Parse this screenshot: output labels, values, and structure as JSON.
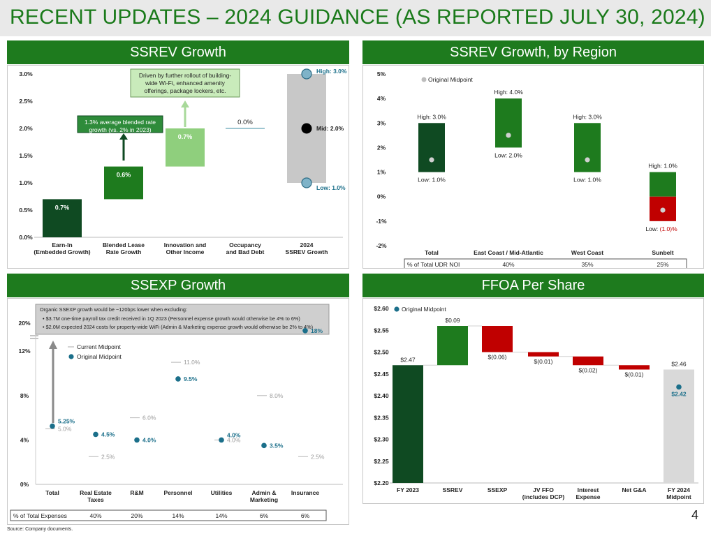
{
  "page": {
    "title": "RECENT UPDATES – 2024 GUIDANCE (AS REPORTED JULY 30, 2024)",
    "page_number": "4",
    "source": "Source: Company documents.",
    "colors": {
      "dark_green": "#0f4a22",
      "green": "#1e7b1e",
      "light_green": "#8fcf7d",
      "gray": "#c8c8c8",
      "teal": "#1b6f8a",
      "red": "#c00000",
      "light_gray": "#d9d9d9"
    }
  },
  "chart_data": [
    {
      "id": "ssrev",
      "type": "waterfall",
      "title": "SSREV Growth",
      "y_ticks": [
        "0.0%",
        "0.5%",
        "1.0%",
        "1.5%",
        "2.0%",
        "2.5%",
        "3.0%"
      ],
      "ylim": [
        0,
        3.0
      ],
      "categories": [
        "Earn-In\n(Embedded Growth)",
        "Blended Lease\nRate Growth",
        "Innovation and\nOther Income",
        "Occupancy\nand Bad Debt",
        "2024\nSSREV Growth"
      ],
      "steps": [
        {
          "label": "0.7%",
          "start": 0.0,
          "end": 0.7,
          "color": "dark_green"
        },
        {
          "label": "0.6%",
          "start": 0.7,
          "end": 1.3,
          "color": "green"
        },
        {
          "label": "0.7%",
          "start": 1.3,
          "end": 2.0,
          "color": "light_green"
        },
        {
          "label": "0.0%",
          "start": 2.0,
          "end": 2.0,
          "color": "teal_line"
        }
      ],
      "total": {
        "low": 1.0,
        "high": 3.0,
        "mid": 2.0,
        "low_label": "Low: 1.0%",
        "high_label": "High: 3.0%",
        "mid_label": "Mid: 2.0%"
      },
      "annotations": [
        {
          "text": "1.3% average blended rate growth (vs. 2% in 2023)"
        },
        {
          "text": "Driven by further rollout of building-wide Wi-Fi, enhanced amenity offerings, package lockers, etc."
        }
      ]
    },
    {
      "id": "ssrev_region",
      "type": "range",
      "title": "SSREV Growth, by Region",
      "y_ticks": [
        "-2%",
        "-1%",
        "0%",
        "1%",
        "2%",
        "3%",
        "4%",
        "5%"
      ],
      "ylim": [
        -2,
        5
      ],
      "legend": "Original Midpoint",
      "categories": [
        "Total",
        "East Coast / Mid-Atlantic",
        "West Coast",
        "Sunbelt"
      ],
      "series": [
        {
          "low": 1.0,
          "high": 3.0,
          "mid": 1.5,
          "low_label": "Low: 1.0%",
          "high_label": "High: 3.0%"
        },
        {
          "low": 2.0,
          "high": 4.0,
          "mid": 2.5,
          "low_label": "Low: 2.0%",
          "high_label": "High: 4.0%"
        },
        {
          "low": 1.0,
          "high": 3.0,
          "mid": 1.5,
          "low_label": "Low: 1.0%",
          "high_label": "High: 3.0%"
        },
        {
          "low": -1.0,
          "high": 1.0,
          "mid": -0.55,
          "low_label_prefix": "Low: ",
          "low_label": "(1.0)%",
          "high_label": "High: 1.0%"
        }
      ],
      "table": {
        "row_label": "% of Total UDR NOI",
        "values": [
          "",
          "40%",
          "35%",
          "25%"
        ]
      }
    },
    {
      "id": "ssexp",
      "type": "scatter",
      "title": "SSEXP Growth",
      "y_ticks": [
        "0%",
        "4%",
        "8%",
        "12%",
        "20%"
      ],
      "legend": [
        "Current Midpoint",
        "Original Midpoint"
      ],
      "note_title": "Organic SSEXP growth would be ~120bps lower when excluding:",
      "note_items": [
        "$3.7M one-time payroll tax credit received in 1Q 2023 (Personnel expense growth would otherwise be 4% to 6%)",
        "$2.0M expected 2024 costs for property-wide WiFi (Admin & Marketing expense growth would otherwise be 2% to 4%)"
      ],
      "categories": [
        "Total",
        "Real Estate\nTaxes",
        "R&M",
        "Personnel",
        "Utilities",
        "Admin &\nMarketing",
        "Insurance"
      ],
      "current": [
        {
          "value": 5.0,
          "label": "5.0%"
        },
        {
          "value": 2.5,
          "label": "2.5%"
        },
        {
          "value": 6.0,
          "label": "6.0%"
        },
        {
          "value": 11.0,
          "label": "11.0%"
        },
        {
          "value": 4.0,
          "label": "4.0%"
        },
        {
          "value": 8.0,
          "label": "8.0%"
        },
        {
          "value": 2.5,
          "label": "2.5%"
        }
      ],
      "original": [
        {
          "value": 5.25,
          "label": "5.25%"
        },
        {
          "value": 4.5,
          "label": "4.5%"
        },
        {
          "value": 4.0,
          "label": "4.0%"
        },
        {
          "value": 9.5,
          "label": "9.5%"
        },
        {
          "value": 4.0,
          "label": "4.0%"
        },
        {
          "value": 3.5,
          "label": "3.5%"
        },
        {
          "value": 18.0,
          "label": "18%"
        }
      ],
      "table": {
        "row_label": "% of Total Expenses",
        "values": [
          "40%",
          "20%",
          "14%",
          "14%",
          "6%",
          "6%"
        ]
      }
    },
    {
      "id": "ffoa",
      "type": "waterfall",
      "title": "FFOA Per Share",
      "y_ticks": [
        "$2.20",
        "$2.25",
        "$2.30",
        "$2.35",
        "$2.40",
        "$2.45",
        "$2.50",
        "$2.55",
        "$2.60"
      ],
      "ylim": [
        2.2,
        2.6
      ],
      "legend": "Original Midpoint",
      "categories": [
        "FY 2023",
        "SSREV",
        "SSEXP",
        "JV FFO\n(includes DCP)",
        "Interest\nExpense",
        "Net G&A",
        "FY 2024\nMidpoint"
      ],
      "steps": [
        {
          "label": "$2.47",
          "start": 2.2,
          "end": 2.47,
          "color": "dark_green"
        },
        {
          "label": "$0.09",
          "start": 2.47,
          "end": 2.56,
          "color": "green"
        },
        {
          "label": "$(0.06)",
          "start": 2.56,
          "end": 2.5,
          "color": "red"
        },
        {
          "label": "$(0.01)",
          "start": 2.5,
          "end": 2.49,
          "color": "red"
        },
        {
          "label": "$(0.02)",
          "start": 2.49,
          "end": 2.47,
          "color": "red"
        },
        {
          "label": "$(0.01)",
          "start": 2.47,
          "end": 2.46,
          "color": "red"
        },
        {
          "label": "$2.46",
          "start": 2.2,
          "end": 2.46,
          "color": "light_gray"
        }
      ],
      "original_midpoint": {
        "value": 2.42,
        "label": "$2.42"
      }
    }
  ]
}
